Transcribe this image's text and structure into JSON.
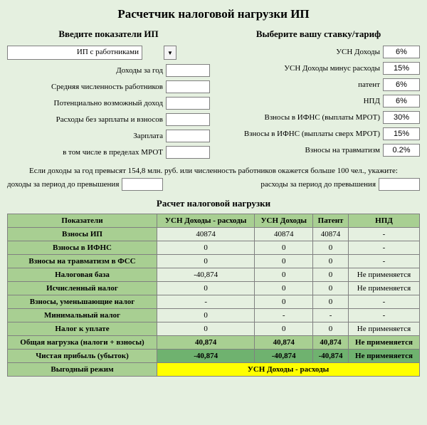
{
  "title": "Расчетчик налоговой нагрузки ИП",
  "left": {
    "heading": "Введите показатели  ИП",
    "select_value": "ИП с работниками",
    "fields": [
      {
        "label": "Доходы за год",
        "value": ""
      },
      {
        "label": "Средняя численность работников",
        "value": ""
      },
      {
        "label": "Потенциально возможный доход",
        "value": ""
      },
      {
        "label": "Расходы без зарплаты и взносов",
        "value": ""
      },
      {
        "label": "Зарплата",
        "value": ""
      },
      {
        "label": "в том числе в пределах МРОТ",
        "value": ""
      }
    ]
  },
  "right": {
    "heading": "Выберите вашу ставку/тариф",
    "fields": [
      {
        "label": "УСН Доходы",
        "value": "6%"
      },
      {
        "label": "УСН Доходы минус расходы",
        "value": "15%"
      },
      {
        "label": "патент",
        "value": "6%"
      },
      {
        "label": "НПД",
        "value": "6%"
      },
      {
        "label": "Взносы в ИФНС (выплаты МРОТ)",
        "value": "30%"
      },
      {
        "label": "Взносы в ИФНС (выплаты сверх МРОТ)",
        "value": "15%"
      },
      {
        "label": "Взносы на травматизм",
        "value": "0.2%"
      }
    ]
  },
  "note": "Если доходы за год превысят 154,8 млн. руб. или численность работников окажется больше 100 чел., укажите:",
  "excess": {
    "left_label": "доходы за период до превышения",
    "right_label": "расходы за  период до превышения"
  },
  "calc_title": "Расчет налоговой нагрузки",
  "table": {
    "headers": [
      "Показатели",
      "УСН Доходы - расходы",
      "УСН Доходы",
      "Патент",
      "НПД"
    ],
    "rows": [
      {
        "label": "Взносы ИП",
        "cells": [
          "40874",
          "40874",
          "40874",
          "-"
        ]
      },
      {
        "label": "Взносы в ИФНС",
        "cells": [
          "0",
          "0",
          "0",
          "-"
        ]
      },
      {
        "label": "Взносы на травматизм в ФСС",
        "cells": [
          "0",
          "0",
          "0",
          "-"
        ]
      },
      {
        "label": "Налоговая база",
        "cells": [
          "-40,874",
          "0",
          "0",
          "Не применяется"
        ]
      },
      {
        "label": "Исчисленный налог",
        "cells": [
          "0",
          "0",
          "0",
          "Не применяется"
        ]
      },
      {
        "label": "Взносы, уменьшающие налог",
        "cells": [
          "-",
          "0",
          "0",
          "-"
        ]
      },
      {
        "label": "Минимальный налог",
        "cells": [
          "0",
          "-",
          "-",
          "-"
        ]
      },
      {
        "label": "Налог к уплате",
        "cells": [
          "0",
          "0",
          "0",
          "Не применяется"
        ]
      }
    ],
    "total": {
      "label": "Общая нагрузка (налоги + взносы)",
      "cells": [
        "40,874",
        "40,874",
        "40,874",
        "Не применяется"
      ]
    },
    "profit": {
      "label": "Чистая прибыль (убыток)",
      "cells": [
        "-40,874",
        "-40,874",
        "-40,874",
        "Не применяется"
      ]
    },
    "best": {
      "label": "Выгодный режим",
      "value": "УСН Доходы -  расходы"
    }
  }
}
